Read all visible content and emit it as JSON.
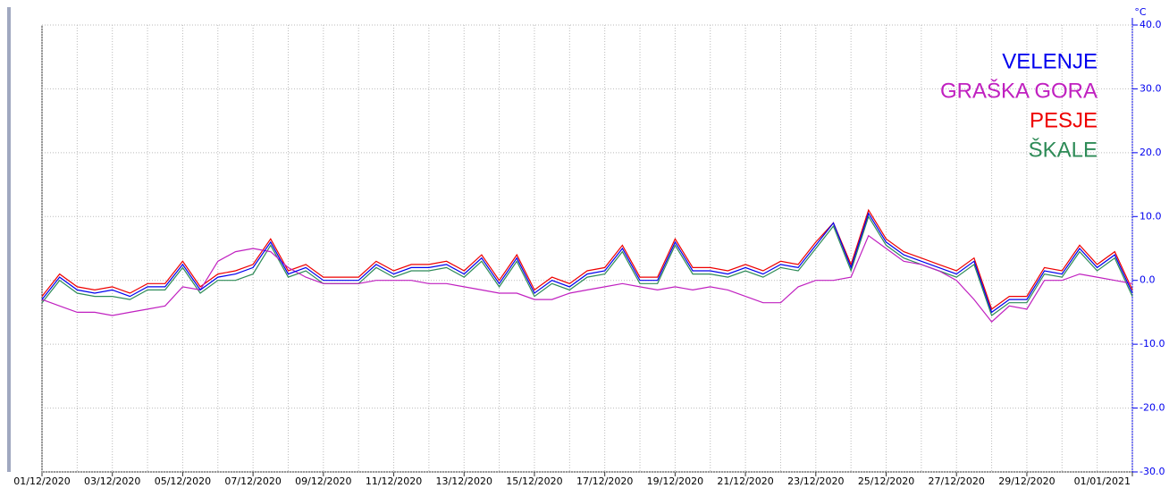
{
  "chart_data": {
    "type": "line",
    "y_unit": "°C",
    "xlim": [
      "2020-12-01 00:00",
      "2021-01-01 00:00"
    ],
    "ylim": [
      -30,
      40
    ],
    "yticks": [
      {
        "value": 40,
        "label": "40.0"
      },
      {
        "value": 30,
        "label": "30.0"
      },
      {
        "value": 20,
        "label": "20.0"
      },
      {
        "value": 10,
        "label": "10.0"
      },
      {
        "value": 0,
        "label": "0.0"
      },
      {
        "value": -10,
        "label": "-10.0"
      },
      {
        "value": -20,
        "label": "-20.0"
      },
      {
        "value": -30,
        "label": "-30.0"
      }
    ],
    "xticks": [
      {
        "value": "2020-12-01 00:00",
        "label": "01/12/2020"
      },
      {
        "value": "2020-12-03 00:00",
        "label": "03/12/2020"
      },
      {
        "value": "2020-12-05 00:00",
        "label": "05/12/2020"
      },
      {
        "value": "2020-12-07 00:00",
        "label": "07/12/2020"
      },
      {
        "value": "2020-12-09 00:00",
        "label": "09/12/2020"
      },
      {
        "value": "2020-12-11 00:00",
        "label": "11/12/2020"
      },
      {
        "value": "2020-12-13 00:00",
        "label": "13/12/2020"
      },
      {
        "value": "2020-12-15 00:00",
        "label": "15/12/2020"
      },
      {
        "value": "2020-12-17 00:00",
        "label": "17/12/2020"
      },
      {
        "value": "2020-12-19 00:00",
        "label": "19/12/2020"
      },
      {
        "value": "2020-12-21 00:00",
        "label": "21/12/2020"
      },
      {
        "value": "2020-12-23 00:00",
        "label": "23/12/2020"
      },
      {
        "value": "2020-12-25 00:00",
        "label": "25/12/2020"
      },
      {
        "value": "2020-12-27 00:00",
        "label": "27/12/2020"
      },
      {
        "value": "2020-12-29 00:00",
        "label": "29/12/2020"
      },
      {
        "value": "2021-01-01 00:00",
        "label": "01/01/2021"
      }
    ],
    "xgrid": [
      "2020-12-02 00:00",
      "2020-12-04 00:00",
      "2020-12-06 00:00",
      "2020-12-08 00:00",
      "2020-12-10 00:00",
      "2020-12-12 00:00",
      "2020-12-14 00:00",
      "2020-12-16 00:00",
      "2020-12-18 00:00",
      "2020-12-20 00:00",
      "2020-12-22 00:00",
      "2020-12-24 00:00",
      "2020-12-26 00:00",
      "2020-12-28 00:00",
      "2020-12-30 00:00",
      "2020-12-31 00:00"
    ],
    "grid": true,
    "legend": "upper right",
    "x": [
      "2020-12-01 00:00",
      "2020-12-01 12:00",
      "2020-12-02 00:00",
      "2020-12-02 12:00",
      "2020-12-03 00:00",
      "2020-12-03 12:00",
      "2020-12-04 00:00",
      "2020-12-04 12:00",
      "2020-12-05 00:00",
      "2020-12-05 12:00",
      "2020-12-06 00:00",
      "2020-12-06 12:00",
      "2020-12-07 00:00",
      "2020-12-07 12:00",
      "2020-12-08 00:00",
      "2020-12-08 12:00",
      "2020-12-09 00:00",
      "2020-12-09 12:00",
      "2020-12-10 00:00",
      "2020-12-10 12:00",
      "2020-12-11 00:00",
      "2020-12-11 12:00",
      "2020-12-12 00:00",
      "2020-12-12 12:00",
      "2020-12-13 00:00",
      "2020-12-13 12:00",
      "2020-12-14 00:00",
      "2020-12-14 12:00",
      "2020-12-15 00:00",
      "2020-12-15 12:00",
      "2020-12-16 00:00",
      "2020-12-16 12:00",
      "2020-12-17 00:00",
      "2020-12-17 12:00",
      "2020-12-18 00:00",
      "2020-12-18 12:00",
      "2020-12-19 00:00",
      "2020-12-19 12:00",
      "2020-12-20 00:00",
      "2020-12-20 12:00",
      "2020-12-21 00:00",
      "2020-12-21 12:00",
      "2020-12-22 00:00",
      "2020-12-22 12:00",
      "2020-12-23 00:00",
      "2020-12-23 12:00",
      "2020-12-24 00:00",
      "2020-12-24 12:00",
      "2020-12-25 00:00",
      "2020-12-25 12:00",
      "2020-12-26 00:00",
      "2020-12-26 12:00",
      "2020-12-27 00:00",
      "2020-12-27 12:00",
      "2020-12-28 00:00",
      "2020-12-28 12:00",
      "2020-12-29 00:00",
      "2020-12-29 12:00",
      "2020-12-30 00:00",
      "2020-12-30 12:00",
      "2020-12-31 00:00",
      "2020-12-31 12:00",
      "2021-01-01 00:00"
    ],
    "series": [
      {
        "name": "VELENJE",
        "color": "#0000ee",
        "values": [
          -3,
          0.5,
          -1.5,
          -2,
          -1.5,
          -2.5,
          -1,
          -1,
          2.5,
          -1.5,
          0.5,
          1,
          2,
          6,
          1,
          2,
          0,
          0,
          0,
          2.5,
          1,
          2,
          2,
          2.5,
          1,
          3.5,
          -0.5,
          3.5,
          -2,
          0,
          -1,
          1,
          1.5,
          5,
          0,
          0,
          6,
          1.5,
          1.5,
          1,
          2,
          1,
          2.5,
          2,
          5.5,
          9,
          2,
          10.5,
          6,
          4,
          3,
          2,
          1,
          3,
          -5,
          -3,
          -3,
          1.5,
          1,
          5,
          2,
          4,
          -2
        ]
      },
      {
        "name": "GRAŠKA GORA",
        "color": "#c020c0",
        "values": [
          -3,
          -4,
          -5,
          -5,
          -5.5,
          -5,
          -4.5,
          -4,
          -1,
          -1.5,
          3,
          4.5,
          5,
          4.5,
          2,
          0.5,
          -0.5,
          -0.5,
          -0.5,
          0,
          0,
          0,
          -0.5,
          -0.5,
          -1,
          -1.5,
          -2,
          -2,
          -3,
          -3,
          -2,
          -1.5,
          -1,
          -0.5,
          -1,
          -1.5,
          -1,
          -1.5,
          -1,
          -1.5,
          -2.5,
          -3.5,
          -3.5,
          -1,
          0,
          0,
          0.5,
          7,
          5,
          3,
          2.5,
          1.5,
          0,
          -3,
          -6.5,
          -4,
          -4.5,
          0,
          0,
          1,
          0.5,
          0,
          -0.5
        ]
      },
      {
        "name": "PESJE",
        "color": "#ee0000",
        "values": [
          -2.5,
          1,
          -1,
          -1.5,
          -1,
          -2,
          -0.5,
          -0.5,
          3,
          -1,
          1,
          1.5,
          2.5,
          6.5,
          1.5,
          2.5,
          0.5,
          0.5,
          0.5,
          3,
          1.5,
          2.5,
          2.5,
          3,
          1.5,
          4,
          0,
          4,
          -1.5,
          0.5,
          -0.5,
          1.5,
          2,
          5.5,
          0.5,
          0.5,
          6.5,
          2,
          2,
          1.5,
          2.5,
          1.5,
          3,
          2.5,
          6,
          9,
          2.5,
          11,
          6.5,
          4.5,
          3.5,
          2.5,
          1.5,
          3.5,
          -4.5,
          -2.5,
          -2.5,
          2,
          1.5,
          5.5,
          2.5,
          4.5,
          -1.5
        ]
      },
      {
        "name": "ŠKALE",
        "color": "#2e8b57",
        "values": [
          -3.5,
          0,
          -2,
          -2.5,
          -2.5,
          -3,
          -1.5,
          -1.5,
          2,
          -2,
          0,
          0,
          1,
          5.5,
          0.5,
          1.5,
          -0.5,
          -0.5,
          -0.5,
          2,
          0.5,
          1.5,
          1.5,
          2,
          0.5,
          3,
          -1,
          3,
          -2.5,
          -0.5,
          -1.5,
          0.5,
          1,
          4.5,
          -0.5,
          -0.5,
          5.5,
          1,
          1,
          0.5,
          1.5,
          0.5,
          2,
          1.5,
          5,
          8.5,
          1.5,
          10,
          5.5,
          3.5,
          2.5,
          1.5,
          0.5,
          2.5,
          -5.5,
          -3.5,
          -3.5,
          1,
          0.5,
          4.5,
          1.5,
          3.5,
          -2.5
        ]
      }
    ]
  }
}
